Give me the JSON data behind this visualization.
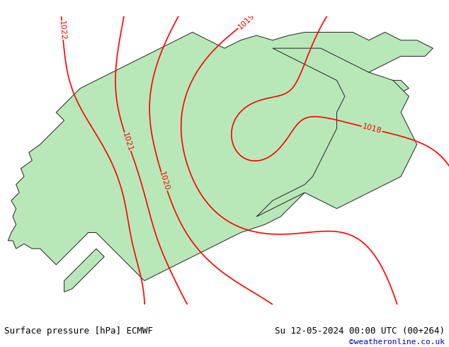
{
  "title_left": "Surface pressure [hPa] ECMWF",
  "title_right": "Su 12-05-2024 00:00 UTC (00+264)",
  "credit": "©weatheronline.co.uk",
  "bg_color": "#d3d3d3",
  "land_color": "#b8e8b8",
  "sea_color": "#d3d3d3",
  "coast_color": "#222222",
  "contour_color": "#ff0000",
  "contour_linewidth": 1.2,
  "contour_levels": [
    1018,
    1019,
    1020,
    1021,
    1022
  ],
  "font_size_title": 9,
  "font_size_credit": 8,
  "font_size_contour": 8,
  "map_lon_min": 4,
  "map_lon_max": 32,
  "map_lat_min": 54,
  "map_lat_max": 72
}
